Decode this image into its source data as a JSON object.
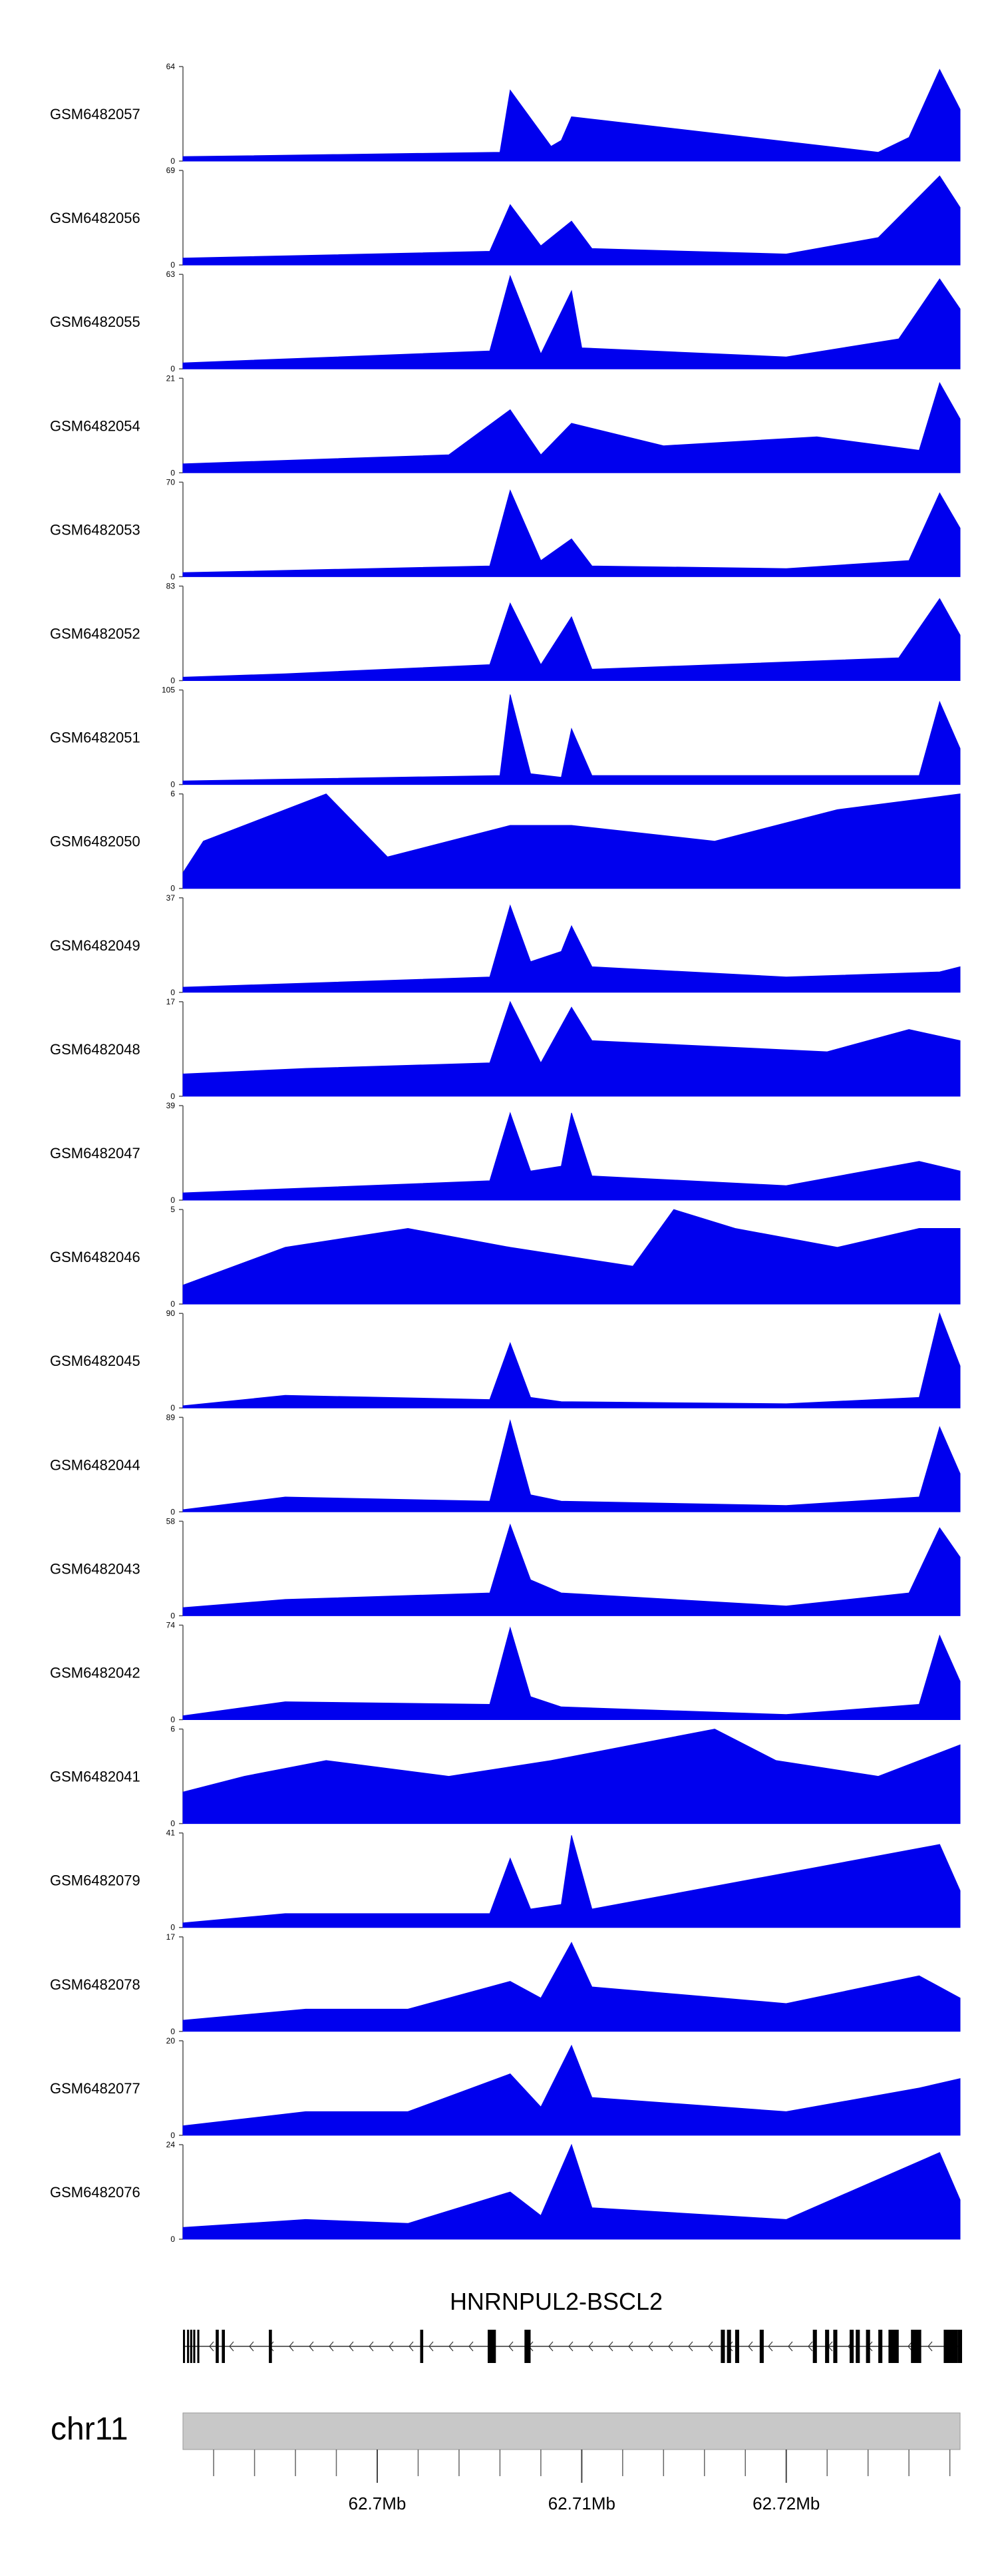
{
  "chart_data": {
    "type": "area",
    "region": {
      "chromosome": "chr11",
      "start_mb": 62.6905,
      "end_mb": 62.7285,
      "tick_labels": [
        "62.7Mb",
        "62.71Mb",
        "62.72Mb"
      ]
    },
    "gene": {
      "name": "HNRNPUL2-BSCL2",
      "strand": "-",
      "exons_mb": [
        [
          62.6905,
          62.6906
        ],
        [
          62.6907,
          62.6908
        ],
        [
          62.69085,
          62.69095
        ],
        [
          62.691,
          62.6911
        ],
        [
          62.6912,
          62.6913
        ],
        [
          62.6921,
          62.69225
        ],
        [
          62.6924,
          62.69255
        ],
        [
          62.6947,
          62.69485
        ],
        [
          62.7021,
          62.70225
        ],
        [
          62.7054,
          62.7058
        ],
        [
          62.7072,
          62.7075
        ],
        [
          62.7168,
          62.717
        ],
        [
          62.7171,
          62.7173
        ],
        [
          62.7175,
          62.7177
        ],
        [
          62.7187,
          62.7189
        ],
        [
          62.7213,
          62.7215
        ],
        [
          62.7219,
          62.7221
        ],
        [
          62.7223,
          62.7225
        ],
        [
          62.7231,
          62.7233
        ],
        [
          62.7234,
          62.7236
        ],
        [
          62.7239,
          62.7241
        ],
        [
          62.7245,
          62.7247
        ],
        [
          62.725,
          62.7255
        ],
        [
          62.7261,
          62.7266
        ],
        [
          62.7277,
          62.7284
        ],
        [
          62.7284,
          62.7286
        ]
      ]
    },
    "series": [
      {
        "name": "GSM6482057",
        "ymax": 64,
        "x_mb": [
          62.6905,
          62.706,
          62.7065,
          62.7085,
          62.709,
          62.7095,
          62.7245,
          62.726,
          62.7275,
          62.7285
        ],
        "y": [
          3,
          6,
          48,
          10,
          14,
          30,
          6,
          16,
          62,
          35
        ]
      },
      {
        "name": "GSM6482056",
        "ymax": 69,
        "x_mb": [
          62.6905,
          62.7055,
          62.7065,
          62.708,
          62.7095,
          62.7105,
          62.72,
          62.7245,
          62.7275,
          62.7285
        ],
        "y": [
          5,
          10,
          44,
          14,
          32,
          12,
          8,
          20,
          65,
          42
        ]
      },
      {
        "name": "GSM6482055",
        "ymax": 63,
        "x_mb": [
          62.6905,
          62.7055,
          62.7065,
          62.708,
          62.7095,
          62.71,
          62.72,
          62.7255,
          62.7275,
          62.7285
        ],
        "y": [
          4,
          12,
          62,
          10,
          52,
          14,
          8,
          20,
          60,
          40
        ]
      },
      {
        "name": "GSM6482054",
        "ymax": 21,
        "x_mb": [
          62.6905,
          62.7035,
          62.7065,
          62.708,
          62.7095,
          62.714,
          62.7215,
          62.7265,
          62.7275,
          62.7285
        ],
        "y": [
          2,
          4,
          14,
          4,
          11,
          6,
          8,
          5,
          20,
          12
        ]
      },
      {
        "name": "GSM6482053",
        "ymax": 70,
        "x_mb": [
          62.6905,
          62.7055,
          62.7065,
          62.708,
          62.7095,
          62.7105,
          62.72,
          62.726,
          62.7275,
          62.7285
        ],
        "y": [
          3,
          8,
          64,
          12,
          28,
          8,
          6,
          12,
          62,
          36
        ]
      },
      {
        "name": "GSM6482052",
        "ymax": 83,
        "x_mb": [
          62.6905,
          62.6955,
          62.7055,
          62.7065,
          62.708,
          62.7095,
          62.7105,
          62.7255,
          62.7275,
          62.7285
        ],
        "y": [
          3,
          6,
          14,
          68,
          14,
          56,
          10,
          20,
          72,
          40
        ]
      },
      {
        "name": "GSM6482051",
        "ymax": 105,
        "x_mb": [
          62.6905,
          62.706,
          62.7065,
          62.7075,
          62.709,
          62.7095,
          62.7105,
          62.7265,
          62.7275,
          62.7285
        ],
        "y": [
          4,
          10,
          100,
          12,
          8,
          62,
          10,
          10,
          92,
          40
        ]
      },
      {
        "name": "GSM6482050",
        "ymax": 6,
        "x_mb": [
          62.6905,
          62.6915,
          62.6935,
          62.6975,
          62.7005,
          62.7065,
          62.7095,
          62.7165,
          62.7225,
          62.7285
        ],
        "y": [
          1,
          3,
          4,
          6,
          2,
          4,
          4,
          3,
          5,
          6
        ]
      },
      {
        "name": "GSM6482049",
        "ymax": 37,
        "x_mb": [
          62.6905,
          62.7055,
          62.7065,
          62.7075,
          62.709,
          62.7095,
          62.7105,
          62.72,
          62.7275,
          62.7285
        ],
        "y": [
          2,
          6,
          34,
          12,
          16,
          26,
          10,
          6,
          8,
          10
        ]
      },
      {
        "name": "GSM6482048",
        "ymax": 17,
        "x_mb": [
          62.6905,
          62.6965,
          62.7055,
          62.7065,
          62.708,
          62.7095,
          62.7105,
          62.722,
          62.726,
          62.7285
        ],
        "y": [
          4,
          5,
          6,
          17,
          6,
          16,
          10,
          8,
          12,
          10
        ]
      },
      {
        "name": "GSM6482047",
        "ymax": 39,
        "x_mb": [
          62.6905,
          62.7055,
          62.7065,
          62.7075,
          62.709,
          62.7095,
          62.7105,
          62.72,
          62.7265,
          62.7285
        ],
        "y": [
          3,
          8,
          36,
          12,
          14,
          36,
          10,
          6,
          16,
          12
        ]
      },
      {
        "name": "GSM6482046",
        "ymax": 5,
        "x_mb": [
          62.6905,
          62.6955,
          62.7015,
          62.7065,
          62.7125,
          62.7145,
          62.7175,
          62.7225,
          62.7265,
          62.7285
        ],
        "y": [
          1,
          3,
          4,
          3,
          2,
          5,
          4,
          3,
          4,
          4
        ]
      },
      {
        "name": "GSM6482045",
        "ymax": 90,
        "x_mb": [
          62.6905,
          62.6955,
          62.7055,
          62.7065,
          62.7075,
          62.709,
          62.72,
          62.7265,
          62.7275,
          62.7285
        ],
        "y": [
          2,
          12,
          8,
          62,
          10,
          6,
          4,
          10,
          90,
          40
        ]
      },
      {
        "name": "GSM6482044",
        "ymax": 89,
        "x_mb": [
          62.6905,
          62.6955,
          62.7055,
          62.7065,
          62.7075,
          62.709,
          62.72,
          62.7265,
          62.7275,
          62.7285
        ],
        "y": [
          2,
          14,
          10,
          86,
          16,
          10,
          6,
          14,
          80,
          36
        ]
      },
      {
        "name": "GSM6482043",
        "ymax": 58,
        "x_mb": [
          62.6905,
          62.6955,
          62.7055,
          62.7065,
          62.7075,
          62.709,
          62.72,
          62.726,
          62.7275,
          62.7285
        ],
        "y": [
          5,
          10,
          14,
          56,
          22,
          14,
          6,
          14,
          54,
          36
        ]
      },
      {
        "name": "GSM6482042",
        "ymax": 74,
        "x_mb": [
          62.6905,
          62.6955,
          62.7055,
          62.7065,
          62.7075,
          62.709,
          62.72,
          62.7265,
          62.7275,
          62.7285
        ],
        "y": [
          3,
          14,
          12,
          72,
          18,
          10,
          4,
          12,
          66,
          30
        ]
      },
      {
        "name": "GSM6482041",
        "ymax": 6,
        "x_mb": [
          62.6905,
          62.6935,
          62.6975,
          62.7035,
          62.7085,
          62.7125,
          62.7165,
          62.7195,
          62.7245,
          62.7285
        ],
        "y": [
          2,
          3,
          4,
          3,
          4,
          5,
          6,
          4,
          3,
          5
        ]
      },
      {
        "name": "GSM6482079",
        "ymax": 41,
        "x_mb": [
          62.6905,
          62.6955,
          62.7055,
          62.7065,
          62.7075,
          62.709,
          62.7095,
          62.7105,
          62.7275,
          62.7285
        ],
        "y": [
          2,
          6,
          6,
          30,
          8,
          10,
          40,
          8,
          36,
          16
        ]
      },
      {
        "name": "GSM6482078",
        "ymax": 17,
        "x_mb": [
          62.6905,
          62.6965,
          62.7015,
          62.7065,
          62.708,
          62.7095,
          62.7105,
          62.72,
          62.7265,
          62.7285
        ],
        "y": [
          2,
          4,
          4,
          9,
          6,
          16,
          8,
          5,
          10,
          6
        ]
      },
      {
        "name": "GSM6482077",
        "ymax": 20,
        "x_mb": [
          62.6905,
          62.6965,
          62.7015,
          62.7065,
          62.708,
          62.7095,
          62.7105,
          62.72,
          62.7265,
          62.7285
        ],
        "y": [
          2,
          5,
          5,
          13,
          6,
          19,
          8,
          5,
          10,
          12
        ]
      },
      {
        "name": "GSM6482076",
        "ymax": 24,
        "x_mb": [
          62.6905,
          62.6965,
          62.7015,
          62.7065,
          62.708,
          62.7095,
          62.7105,
          62.72,
          62.7275,
          62.7285
        ],
        "y": [
          3,
          5,
          4,
          12,
          6,
          24,
          8,
          5,
          22,
          10
        ]
      }
    ]
  }
}
